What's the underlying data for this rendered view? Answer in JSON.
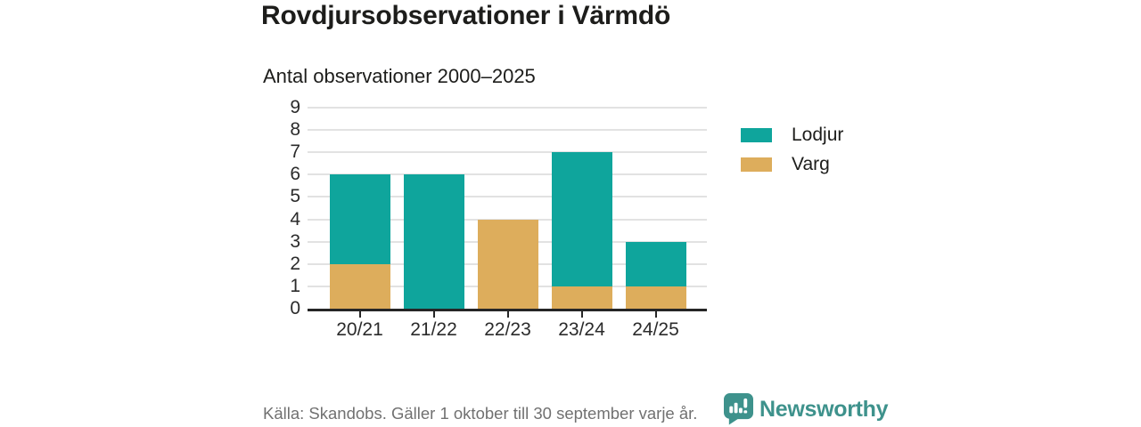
{
  "title": "Rovdjursobservationer i Värmdö",
  "subtitle": "Antal observationer 2000–2025",
  "footer": {
    "source": "Källa: Skandobs. Gäller 1 oktober till 30 september varje år.",
    "brand": "Newsworthy"
  },
  "colors": {
    "lodjur": "#0fa59c",
    "varg": "#ddad5c",
    "grid": "#e2e2e2",
    "axis": "#262626",
    "text": "#1d1d1b",
    "muted": "#717171",
    "brand_teal": "#3e928c"
  },
  "icons": {
    "brand_logo": "newsworthy-speech-bubble-bar-chart-icon"
  },
  "chart_data": {
    "type": "bar",
    "stacked": true,
    "title": "Rovdjursobservationer i Värmdö",
    "subtitle": "Antal observationer 2000–2025",
    "categories": [
      "20/21",
      "21/22",
      "22/23",
      "23/24",
      "24/25"
    ],
    "series": [
      {
        "name": "Lodjur",
        "color": "#0fa59c",
        "values": [
          4,
          6,
          0,
          6,
          2
        ]
      },
      {
        "name": "Varg",
        "color": "#ddad5c",
        "values": [
          2,
          0,
          4,
          1,
          1
        ]
      }
    ],
    "stack_order": [
      "Varg",
      "Lodjur"
    ],
    "totals": [
      6,
      6,
      4,
      7,
      3
    ],
    "xlabel": "",
    "ylabel": "",
    "ylim": [
      0,
      9
    ],
    "yticks": [
      0,
      1,
      2,
      3,
      4,
      5,
      6,
      7,
      8,
      9
    ],
    "grid": true,
    "legend_position": "right"
  }
}
